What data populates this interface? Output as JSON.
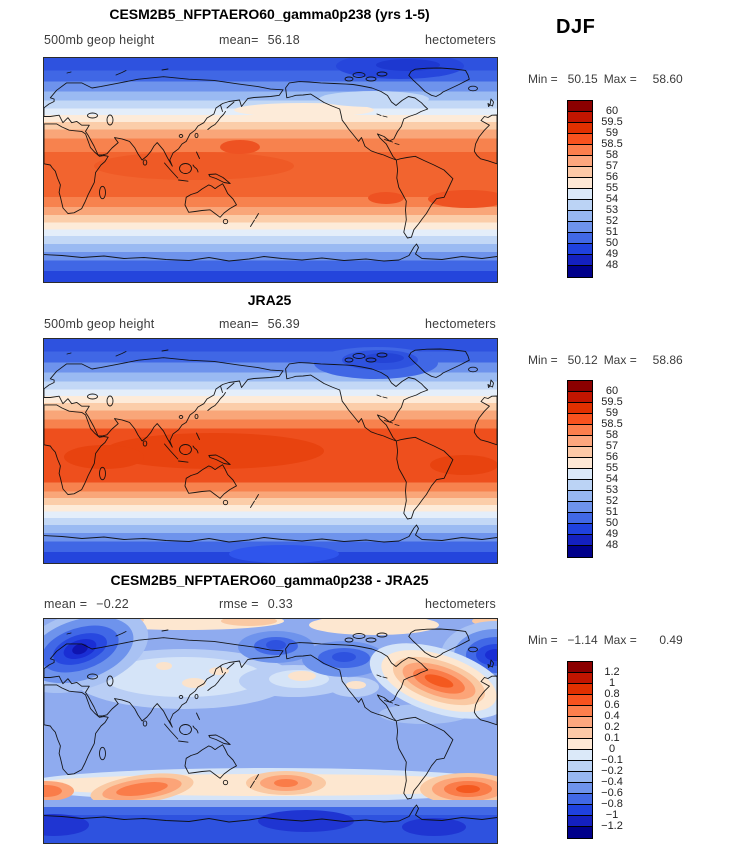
{
  "season": "DJF",
  "palette": [
    "#8B0000",
    "#C21500",
    "#E13000",
    "#F8521E",
    "#FC7F4D",
    "#FDA77E",
    "#FDC9A7",
    "#FEE8D5",
    "#DBE9F9",
    "#BBD3F5",
    "#97B7F1",
    "#6E93EC",
    "#4168E6",
    "#1F41DF",
    "#1420C0",
    "#00008B"
  ],
  "panels": [
    {
      "title": "CESM2B5_NFPTAERO60_gamma0p238 (yrs 1-5)",
      "stats": [
        {
          "label": "500mb geop height",
          "value": ""
        },
        {
          "label": "mean=",
          "value": "56.18"
        },
        {
          "label": "hectometers",
          "value": ""
        }
      ],
      "legend": {
        "min_label": "Min =",
        "min": "50.15",
        "max_label": "Max =",
        "max": "58.60"
      },
      "colorbar_labels": [
        "60",
        "59.5",
        "59",
        "58.5",
        "58",
        "57",
        "56",
        "55",
        "54",
        "53",
        "52",
        "51",
        "50",
        "49",
        "48"
      ]
    },
    {
      "title": "JRA25",
      "stats": [
        {
          "label": "500mb geop height",
          "value": ""
        },
        {
          "label": "mean=",
          "value": "56.39"
        },
        {
          "label": "hectometers",
          "value": ""
        }
      ],
      "legend": {
        "min_label": "Min =",
        "min": "50.12",
        "max_label": "Max =",
        "max": "58.86"
      },
      "colorbar_labels": [
        "60",
        "59.5",
        "59",
        "58.5",
        "58",
        "57",
        "56",
        "55",
        "54",
        "53",
        "52",
        "51",
        "50",
        "49",
        "48"
      ]
    },
    {
      "title": "CESM2B5_NFPTAERO60_gamma0p238 - JRA25",
      "stats": [
        {
          "label": "mean =",
          "value": "−0.22"
        },
        {
          "label": "rmse =",
          "value": "0.33"
        },
        {
          "label": "hectometers",
          "value": ""
        }
      ],
      "legend": {
        "min_label": "Min =",
        "min": "−1.14",
        "max_label": "Max =",
        "max": "0.49"
      },
      "colorbar_labels": [
        "1.2",
        "1",
        "0.8",
        "0.6",
        "0.4",
        "0.2",
        "0.1",
        "0",
        "−0.1",
        "−0.2",
        "−0.4",
        "−0.6",
        "−0.8",
        "−1",
        "−1.2"
      ]
    }
  ],
  "chart_data": [
    {
      "type": "heatmap",
      "subtype": "filled_contour_world_map",
      "title": "CESM2B5_NFPTAERO60_gamma0p238 (yrs 1-5)",
      "variable": "500mb geop height",
      "units": "hectometers",
      "season": "DJF",
      "mean": 56.18,
      "min": 50.15,
      "max": 58.6,
      "contour_levels": [
        48,
        49,
        50,
        51,
        52,
        53,
        54,
        55,
        56,
        57,
        58,
        58.5,
        59,
        59.5,
        60
      ],
      "colormap": "blue-white-red, 16 bands",
      "map_extent": "global, longitude 0-360E, latitude 90N-90S",
      "pattern": "zonal bands: low (blue) heights at poles, high (orange-red) band ~55-58 hm across tropics"
    },
    {
      "type": "heatmap",
      "subtype": "filled_contour_world_map",
      "title": "JRA25",
      "variable": "500mb geop height",
      "units": "hectometers",
      "season": "DJF",
      "mean": 56.39,
      "min": 50.12,
      "max": 58.86,
      "contour_levels": [
        48,
        49,
        50,
        51,
        52,
        53,
        54,
        55,
        56,
        57,
        58,
        58.5,
        59,
        59.5,
        60
      ],
      "colormap": "blue-white-red, 16 bands",
      "map_extent": "global, longitude 0-360E, latitude 90N-90S",
      "pattern": "same zonal structure with deeper tropical maximum (>58 hm) and stronger low over northern Canada"
    },
    {
      "type": "heatmap",
      "subtype": "filled_contour_world_map",
      "title": "CESM2B5_NFPTAERO60_gamma0p238 - JRA25",
      "variable": "500mb geop height difference",
      "units": "hectometers",
      "season": "DJF",
      "mean": -0.22,
      "rmse": 0.33,
      "min": -1.14,
      "max": 0.49,
      "contour_levels": [
        -1.2,
        -1,
        -0.8,
        -0.6,
        -0.4,
        -0.2,
        -0.1,
        0,
        0.1,
        0.2,
        0.4,
        0.6,
        0.8,
        1,
        1.2
      ],
      "colormap": "blue-white-red, 16 bands",
      "map_extent": "global, longitude 0-360E, latitude 90N-90S",
      "pattern": "mostly negative (blue) bias; strong negative centers over Scandinavia/NE Atlantic, Bering Sea, northern Canada and Antarctica; positive (orange) centers over NW Atlantic and southern mid-latitudes ~50S"
    }
  ]
}
